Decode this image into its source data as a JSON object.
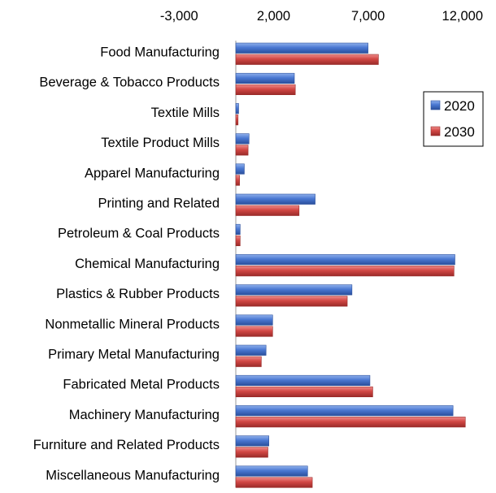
{
  "chart_data": {
    "type": "bar",
    "orientation": "horizontal",
    "x_axis_position": "top",
    "grid": false,
    "xlim": [
      -5500,
      13000
    ],
    "x_ticks": [
      -3000,
      2000,
      7000,
      12000
    ],
    "x_tick_labels": [
      "-3,000",
      "2,000",
      "7,000",
      "12,000"
    ],
    "categories": [
      "Food Manufacturing",
      "Beverage & Tobacco Products",
      "Textile Mills",
      "Textile Product Mills",
      "Apparel Manufacturing",
      "Printing and Related",
      "Petroleum & Coal Products",
      "Chemical Manufacturing",
      "Plastics & Rubber Products",
      "Nonmetallic Mineral Products",
      "Primary Metal Manufacturing",
      "Fabricated Metal Products",
      "Machinery Manufacturing",
      "Furniture and Related Products",
      "Miscellaneous Manufacturing"
    ],
    "series": [
      {
        "name": "2020",
        "color": "#4472c4",
        "values": [
          7000,
          3100,
          150,
          700,
          450,
          4200,
          230,
          11600,
          6150,
          1950,
          1600,
          7100,
          11500,
          1750,
          3800
        ]
      },
      {
        "name": "2030",
        "color": "#c0504d",
        "values": [
          7550,
          3150,
          120,
          650,
          200,
          3350,
          230,
          11550,
          5900,
          1950,
          1350,
          7250,
          12150,
          1700,
          4050
        ]
      }
    ],
    "legend": {
      "position": "right",
      "entries": [
        "2020",
        "2030"
      ]
    }
  }
}
